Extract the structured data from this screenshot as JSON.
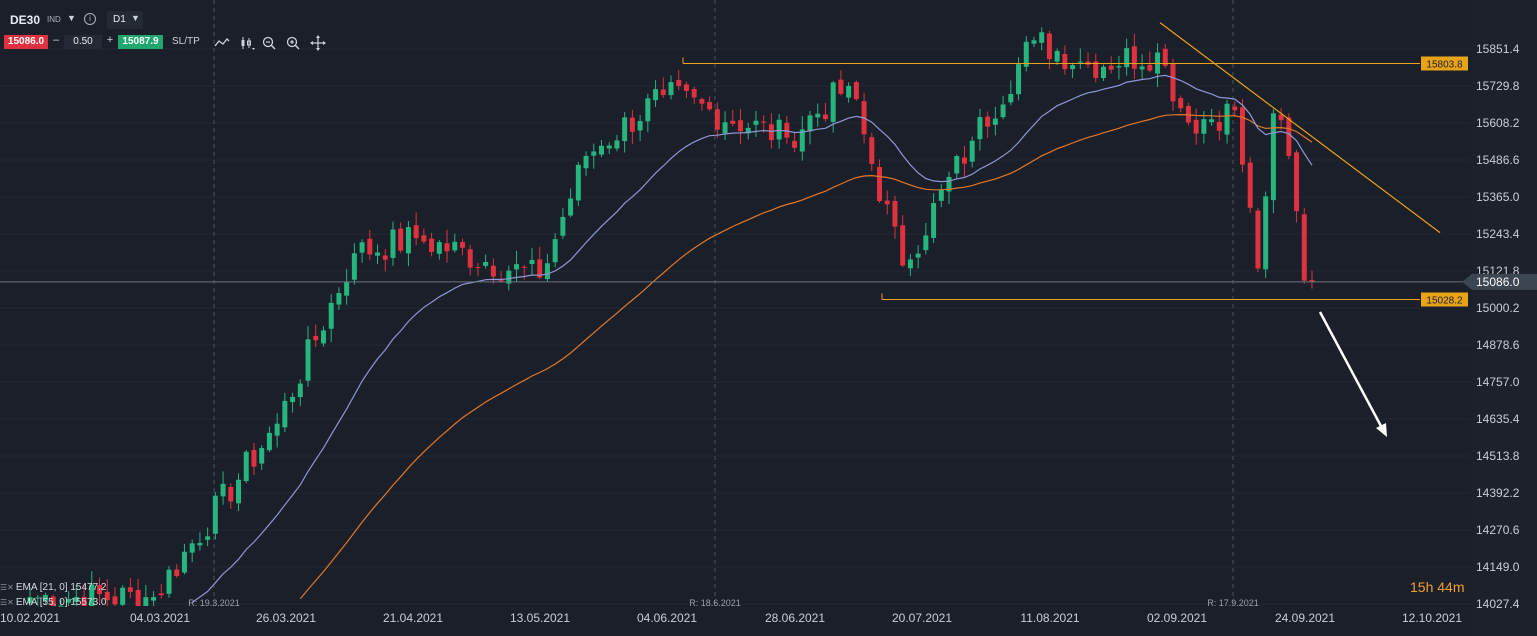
{
  "toolbar": {
    "symbol": "DE30",
    "symbol_type": "IND",
    "timeframe": "D1",
    "sell_price": "15086.0",
    "quantity": "0.50",
    "buy_price": "15087.9",
    "sltp_label": "SL/TP",
    "icons": [
      "line-chart-icon",
      "candles-icon",
      "zoom-out-icon",
      "zoom-in-icon",
      "crosshair-icon"
    ]
  },
  "timer": "15h 44m",
  "legend": [
    {
      "label": "EMA [21, 0] 15477.2",
      "color": "#8f96d6"
    },
    {
      "label": "EMA [55, 0] 15573.0",
      "color": "#e0782a"
    }
  ],
  "colors": {
    "background": "#1a1f29",
    "up": "#26b57f",
    "down": "#e0313e",
    "ema21": "#8f96d6",
    "ema55": "#e0782a",
    "level": "#e8a317",
    "arrow": "#ffffff",
    "current_price_line": "#6b7480"
  },
  "chart_data": {
    "type": "candlestick",
    "instrument": "DE30",
    "timeframe": "D1",
    "x_tick_labels": [
      "10.02.2021",
      "04.03.2021",
      "26.03.2021",
      "21.04.2021",
      "13.05.2021",
      "04.06.2021",
      "28.06.2021",
      "20.07.2021",
      "11.08.2021",
      "02.09.2021",
      "24.09.2021",
      "12.10.2021"
    ],
    "y_tick_labels": [
      "15851.4",
      "15729.8",
      "15608.2",
      "15486.6",
      "15365.0",
      "15243.4",
      "15121.8",
      "15000.2",
      "14878.6",
      "14757.0",
      "14635.4",
      "14513.8",
      "14392.2",
      "14270.6",
      "14149.0",
      "14027.4"
    ],
    "ylim": [
      14000,
      15970
    ],
    "current_price": "15086.0",
    "rollover_markers": [
      "R: 19.3.2021",
      "R: 18.6.2021",
      "R: 17.9.2021"
    ],
    "levels": [
      {
        "label": "15803.8",
        "value": 15803.8
      },
      {
        "label": "15028.2",
        "value": 15028.2
      }
    ],
    "series": [
      {
        "name": "EMA [21, 0] 15477.2"
      },
      {
        "name": "EMA [55, 0] 15573.0"
      }
    ],
    "close_path": [
      {
        "date": "2021-02-10",
        "close": 14050
      },
      {
        "date": "2021-03-04",
        "close": 14050
      },
      {
        "date": "2021-03-26",
        "close": 14620
      },
      {
        "date": "2021-04-09",
        "close": 15180
      },
      {
        "date": "2021-04-21",
        "close": 15230
      },
      {
        "date": "2021-05-13",
        "close": 15100
      },
      {
        "date": "2021-05-21",
        "close": 15500
      },
      {
        "date": "2021-06-04",
        "close": 15700
      },
      {
        "date": "2021-06-28",
        "close": 15560
      },
      {
        "date": "2021-07-08",
        "close": 15730
      },
      {
        "date": "2021-07-19",
        "close": 15140
      },
      {
        "date": "2021-07-30",
        "close": 15550
      },
      {
        "date": "2021-08-11",
        "close": 15880
      },
      {
        "date": "2021-08-20",
        "close": 15800
      },
      {
        "date": "2021-09-02",
        "close": 15840
      },
      {
        "date": "2021-09-08",
        "close": 15610
      },
      {
        "date": "2021-09-16",
        "close": 15650
      },
      {
        "date": "2021-09-21",
        "close": 15130
      },
      {
        "date": "2021-09-23",
        "close": 15640
      },
      {
        "date": "2021-09-27",
        "close": 15500
      },
      {
        "date": "2021-09-29",
        "close": 15090
      },
      {
        "date": "2021-09-30",
        "close": 15086
      }
    ]
  }
}
